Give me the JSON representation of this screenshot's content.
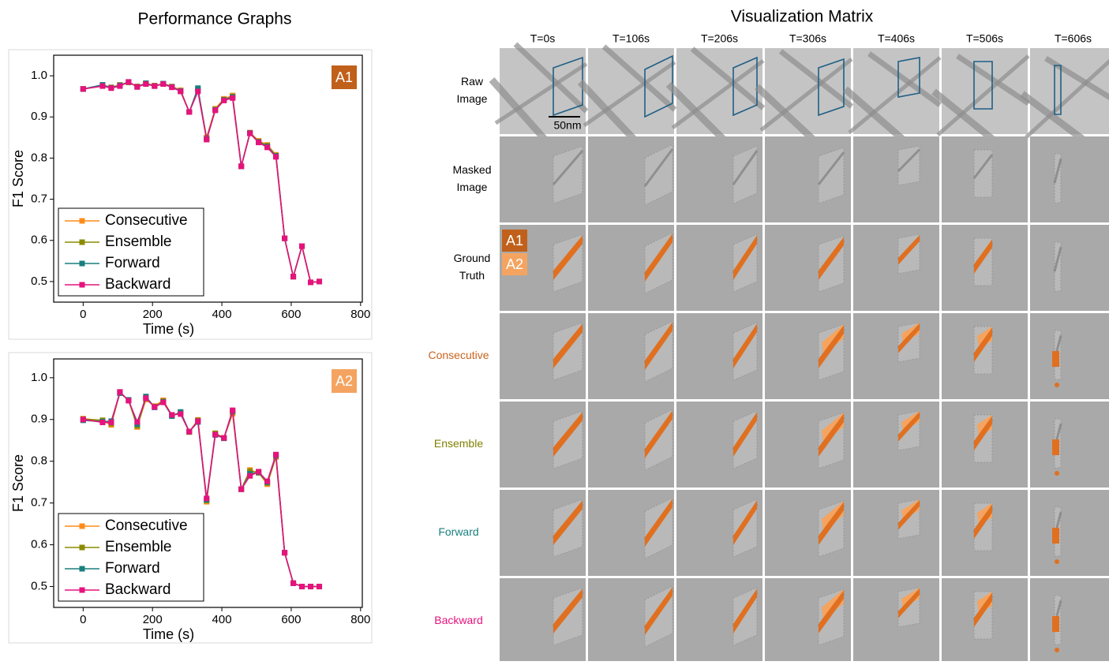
{
  "left_title": "Performance Graphs",
  "chart_data": [
    {
      "type": "line",
      "panel_label": "A1",
      "panel_color": "#c0601a",
      "xlabel": "Time (s)",
      "ylabel": "F1 Score",
      "x": [
        0,
        56,
        81,
        106,
        131,
        156,
        181,
        206,
        231,
        256,
        281,
        306,
        331,
        356,
        381,
        406,
        431,
        456,
        481,
        506,
        531,
        556,
        581,
        606,
        631,
        656,
        681
      ],
      "xlim": [
        -85,
        805
      ],
      "ylim": [
        0.45,
        1.05
      ],
      "xticks": [
        0,
        200,
        400,
        600,
        800
      ],
      "yticks": [
        0.5,
        0.6,
        0.7,
        0.8,
        0.9,
        {
          "value": 1,
          "label": "1.0"
        }
      ],
      "legend": "lower left",
      "series": [
        {
          "name": "Consecutive",
          "color": "#ff8c1a",
          "values": [
            0.968,
            0.977,
            0.972,
            0.978,
            0.984,
            0.974,
            0.982,
            0.976,
            0.981,
            0.974,
            0.965,
            0.912,
            0.965,
            0.85,
            0.92,
            0.944,
            0.952,
            0.78,
            0.862,
            0.842,
            0.832,
            0.808,
            0.605,
            0.512,
            0.586,
            0.498,
            0.5
          ]
        },
        {
          "name": "Ensemble",
          "color": "#8b8b00",
          "values": [
            0.968,
            0.976,
            0.971,
            0.977,
            0.984,
            0.974,
            0.981,
            0.976,
            0.98,
            0.973,
            0.963,
            0.912,
            0.966,
            0.848,
            0.918,
            0.942,
            0.95,
            0.78,
            0.861,
            0.84,
            0.83,
            0.806,
            0.605,
            0.512,
            0.586,
            0.498,
            0.5
          ]
        },
        {
          "name": "Forward",
          "color": "#1a7f7f",
          "values": [
            0.968,
            0.978,
            0.971,
            0.977,
            0.985,
            0.973,
            0.982,
            0.975,
            0.981,
            0.973,
            0.963,
            0.912,
            0.97,
            0.846,
            0.917,
            0.941,
            0.948,
            0.78,
            0.861,
            0.839,
            0.828,
            0.805,
            0.605,
            0.512,
            0.586,
            0.498,
            0.5
          ]
        },
        {
          "name": "Backward",
          "color": "#e6127d",
          "values": [
            0.968,
            0.975,
            0.97,
            0.975,
            0.985,
            0.973,
            0.98,
            0.975,
            0.98,
            0.972,
            0.962,
            0.912,
            0.962,
            0.845,
            0.916,
            0.94,
            0.946,
            0.78,
            0.86,
            0.838,
            0.826,
            0.803,
            0.605,
            0.512,
            0.586,
            0.498,
            0.5
          ]
        }
      ]
    },
    {
      "type": "line",
      "panel_label": "A2",
      "panel_color": "#f4a460",
      "xlabel": "Time (s)",
      "ylabel": "F1 Score",
      "x": [
        0,
        56,
        81,
        106,
        131,
        156,
        181,
        206,
        231,
        256,
        281,
        306,
        331,
        356,
        381,
        406,
        431,
        456,
        481,
        506,
        531,
        556,
        581,
        606,
        631,
        656,
        681
      ],
      "xlim": [
        -85,
        805
      ],
      "ylim": [
        0.45,
        1.045
      ],
      "xticks": [
        0,
        200,
        400,
        600,
        800
      ],
      "yticks": [
        0.5,
        0.6,
        0.7,
        0.8,
        0.9,
        {
          "value": 1,
          "label": "1.0"
        }
      ],
      "legend": "lower left",
      "series": [
        {
          "name": "Consecutive",
          "color": "#ff8c1a",
          "values": [
            0.902,
            0.897,
            0.887,
            0.964,
            0.946,
            0.882,
            0.948,
            0.932,
            0.946,
            0.909,
            0.917,
            0.87,
            0.899,
            0.703,
            0.866,
            0.855,
            0.914,
            0.733,
            0.779,
            0.772,
            0.745,
            0.81,
            0.581,
            0.508,
            0.5,
            0.5,
            0.5
          ]
        },
        {
          "name": "Ensemble",
          "color": "#8b8b00",
          "values": [
            0.901,
            0.898,
            0.89,
            0.965,
            0.946,
            0.885,
            0.95,
            0.931,
            0.944,
            0.91,
            0.916,
            0.87,
            0.898,
            0.706,
            0.867,
            0.856,
            0.918,
            0.733,
            0.776,
            0.774,
            0.748,
            0.812,
            0.581,
            0.508,
            0.5,
            0.5,
            0.5
          ]
        },
        {
          "name": "Forward",
          "color": "#1a7f7f",
          "values": [
            0.898,
            0.895,
            0.896,
            0.963,
            0.947,
            0.889,
            0.955,
            0.929,
            0.942,
            0.908,
            0.918,
            0.871,
            0.894,
            0.708,
            0.863,
            0.855,
            0.92,
            0.733,
            0.77,
            0.773,
            0.75,
            0.814,
            0.581,
            0.508,
            0.5,
            0.5,
            0.5
          ]
        },
        {
          "name": "Backward",
          "color": "#e6127d",
          "values": [
            0.9,
            0.893,
            0.893,
            0.966,
            0.945,
            0.894,
            0.951,
            0.93,
            0.941,
            0.911,
            0.913,
            0.871,
            0.896,
            0.711,
            0.864,
            0.856,
            0.922,
            0.733,
            0.765,
            0.775,
            0.752,
            0.816,
            0.581,
            0.508,
            0.5,
            0.5,
            0.5
          ]
        }
      ]
    }
  ],
  "matrix": {
    "title": "Visualization Matrix",
    "columns": [
      "T=0s",
      "T=106s",
      "T=206s",
      "T=306s",
      "T=406s",
      "T=506s",
      "T=606s"
    ],
    "rows": [
      [
        "Raw",
        "Image"
      ],
      [
        "Masked",
        "Image"
      ],
      [
        "Ground",
        "Truth"
      ],
      [
        "Consecutive"
      ],
      [
        "Ensemble"
      ],
      [
        "Forward"
      ],
      [
        "Backward"
      ]
    ],
    "scale_bar": "50nm",
    "tags": [
      "A1",
      "A2"
    ]
  }
}
